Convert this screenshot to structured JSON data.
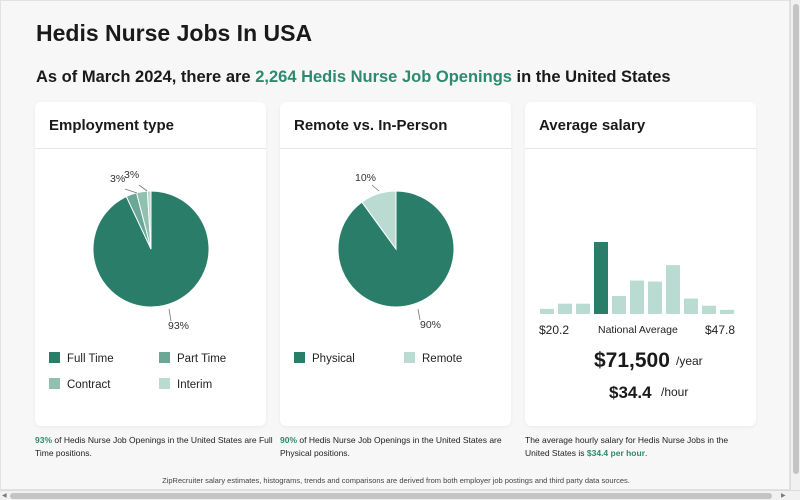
{
  "title": "Hedis Nurse Jobs In USA",
  "subtitle": {
    "prefix": "As of March 2024, there are",
    "highlight": "2,264 Hedis Nurse Job Openings",
    "suffix": "in the United States"
  },
  "colors": {
    "dark_green": "#2a7d69",
    "mid_green": "#6aa795",
    "light_green": "#8fc0b0",
    "pale_green": "#b9dbd1",
    "accent_text": "#2d8a6e"
  },
  "employment": {
    "heading": "Employment type",
    "labels": [
      "93%",
      "3%",
      "3%"
    ],
    "legend": [
      "Full Time",
      "Part Time",
      "Contract",
      "Interim"
    ],
    "footnote_pct": "93%",
    "footnote_rest": " of Hedis Nurse Job Openings in the United States are Full Time positions."
  },
  "remote": {
    "heading": "Remote vs. In-Person",
    "labels": [
      "90%",
      "10%"
    ],
    "legend": [
      "Physical",
      "Remote"
    ],
    "footnote_pct": "90%",
    "footnote_rest": " of Hedis Nurse Job Openings in the United States are Physical positions."
  },
  "salary": {
    "heading": "Average salary",
    "min_label": "$20.2",
    "max_label": "$47.8",
    "national_average_label": "National Average",
    "yearly": "$71,500",
    "yearly_unit": "/year",
    "hourly": "$34.4",
    "hourly_unit": "/hour",
    "footnote_prefix": "The average hourly salary for Hedis Nurse Jobs in the United States is ",
    "footnote_highlight": "$34.4 per hour",
    "footnote_suffix": "."
  },
  "chart_data": [
    {
      "type": "pie",
      "categories": [
        "Full Time",
        "Part Time",
        "Contract",
        "Interim"
      ],
      "values": [
        93,
        3,
        3,
        1
      ]
    },
    {
      "type": "pie",
      "categories": [
        "Physical",
        "Remote"
      ],
      "values": [
        90,
        10
      ]
    },
    {
      "type": "bar",
      "x_range_labels": [
        "$20.2",
        "$47.8"
      ],
      "values": [
        1,
        2,
        2,
        14,
        3.5,
        6.5,
        6.3,
        9.5,
        3,
        1.6,
        0.8
      ],
      "highlight_index": 3
    }
  ],
  "disclaimer": "ZipRecruiter salary estimates, histograms, trends and comparisons are derived from both employer job postings and third party data sources."
}
